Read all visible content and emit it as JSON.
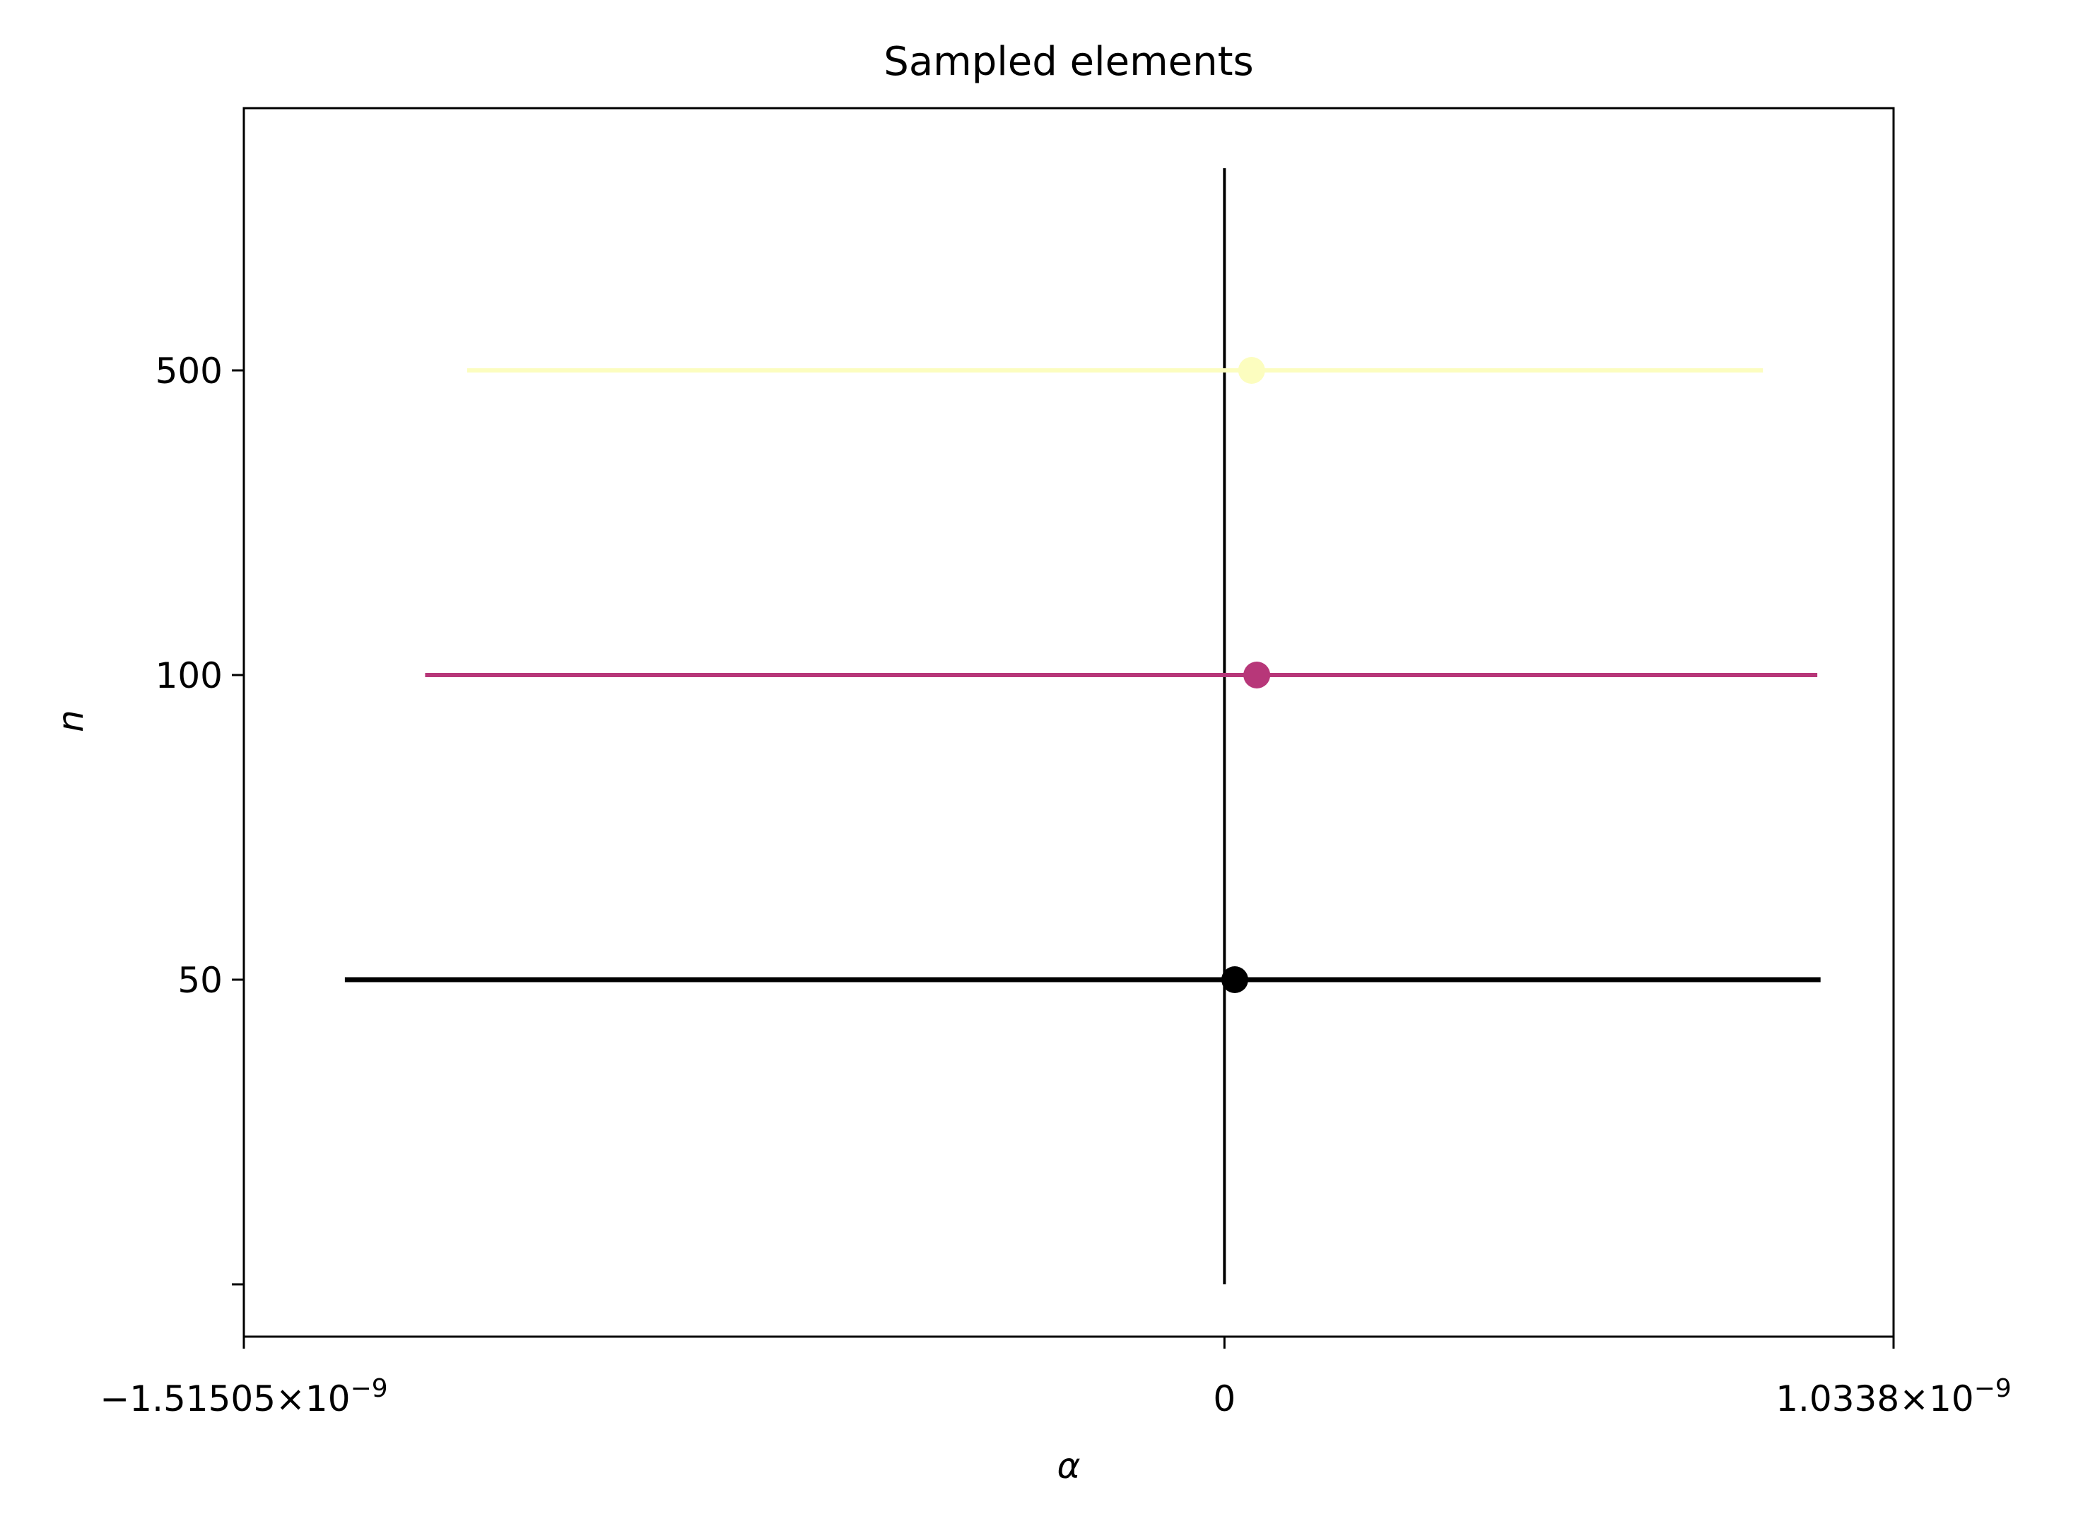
{
  "chart_data": {
    "type": "scatter",
    "title": "Sampled elements",
    "xlabel": "α",
    "ylabel": "n",
    "x_ticks": [
      {
        "value": -1.51505e-09,
        "mantissa": "−1.51505",
        "times": "×",
        "base": "10",
        "exp": "−9"
      },
      {
        "value": 0,
        "mantissa": "0",
        "times": "",
        "base": "",
        "exp": ""
      },
      {
        "value": 1.0338e-09,
        "mantissa": "1.0338",
        "times": "×",
        "base": "10",
        "exp": "−9"
      }
    ],
    "y_ticks": [
      "500",
      "100",
      "50",
      ""
    ],
    "xlim": [
      -1.51505e-09,
      1.0338e-09
    ],
    "grid": false,
    "reference_line": {
      "x": 0,
      "color": "#000000"
    },
    "series": [
      {
        "category": "500",
        "x": 4.2e-11,
        "xerr_low": -1.212e-09,
        "xerr_high": 7.9e-10,
        "color": "#fcfdbf"
      },
      {
        "category": "100",
        "x": 5e-11,
        "xerr_low": -1.285e-09,
        "xerr_high": 8.66e-10,
        "color": "#b73779"
      },
      {
        "category": "50",
        "x": 1.6e-11,
        "xerr_low": -1.375e-09,
        "xerr_high": 9.05e-10,
        "color": "#000000"
      }
    ]
  }
}
